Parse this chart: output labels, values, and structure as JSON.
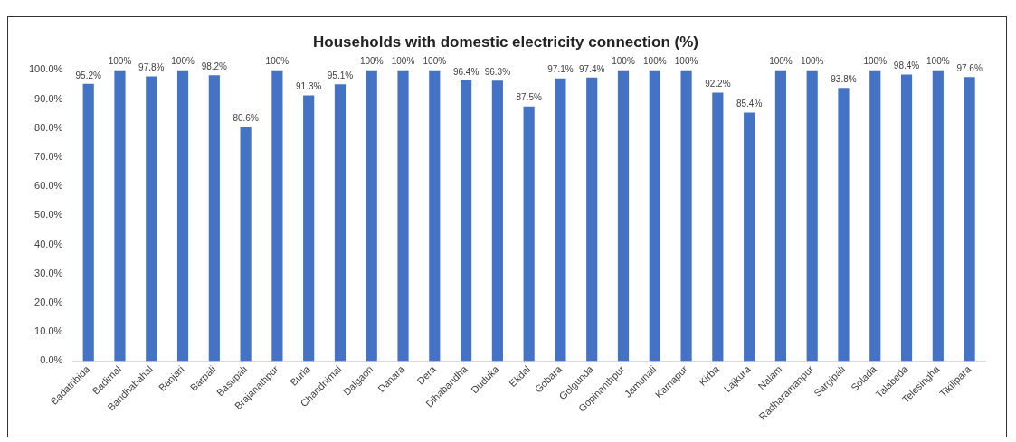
{
  "chart_data": {
    "type": "bar",
    "title": "Households with domestic electricity connection (%)",
    "categories": [
      "Badatribida",
      "Badimal",
      "Bandhabahal",
      "Banjari",
      "Barpali",
      "Basupali",
      "Brajanathpur",
      "Burla",
      "Chandnimal",
      "Dalgaon",
      "Danara",
      "Dera",
      "Dihabandha",
      "Duduka",
      "Ekdal",
      "Gobara",
      "Golgunda",
      "Gopinanthpur",
      "Jamunali",
      "Karnapur",
      "Kirba",
      "Lajkura",
      "Nalam",
      "Radharamanpur",
      "Sargipali",
      "Solada",
      "Talabeda",
      "Telesingha",
      "Tikilipara"
    ],
    "values": [
      95.2,
      100,
      97.8,
      100,
      98.2,
      80.6,
      100,
      91.3,
      95.1,
      100,
      100,
      100,
      96.4,
      96.3,
      87.5,
      97.1,
      97.4,
      100,
      100,
      100,
      92.2,
      85.4,
      100,
      100,
      93.8,
      100,
      98.4,
      100,
      97.6
    ],
    "value_labels": [
      "95.2%",
      "100%",
      "97.8%",
      "100%",
      "98.2%",
      "80.6%",
      "100%",
      "91.3%",
      "95.1%",
      "100%",
      "100%",
      "100%",
      "96.4%",
      "96.3%",
      "87.5%",
      "97.1%",
      "97.4%",
      "100%",
      "100%",
      "100%",
      "92.2%",
      "85.4%",
      "100%",
      "100%",
      "93.8%",
      "100%",
      "98.4%",
      "100%",
      "97.6%"
    ],
    "color": "#4472c4",
    "ylim": [
      0,
      100
    ],
    "yticks": [
      {
        "value": 0,
        "label": "0.0%"
      },
      {
        "value": 10,
        "label": "10.0%"
      },
      {
        "value": 20,
        "label": "20.0%"
      },
      {
        "value": 30,
        "label": "30.0%"
      },
      {
        "value": 40,
        "label": "40.0%"
      },
      {
        "value": 50,
        "label": "50.0%"
      },
      {
        "value": 60,
        "label": "60.0%"
      },
      {
        "value": 70,
        "label": "70.0%"
      },
      {
        "value": 80,
        "label": "80.0%"
      },
      {
        "value": 90,
        "label": "90.0%"
      },
      {
        "value": 100,
        "label": "100.0%"
      }
    ],
    "grid": false,
    "legend": false
  }
}
